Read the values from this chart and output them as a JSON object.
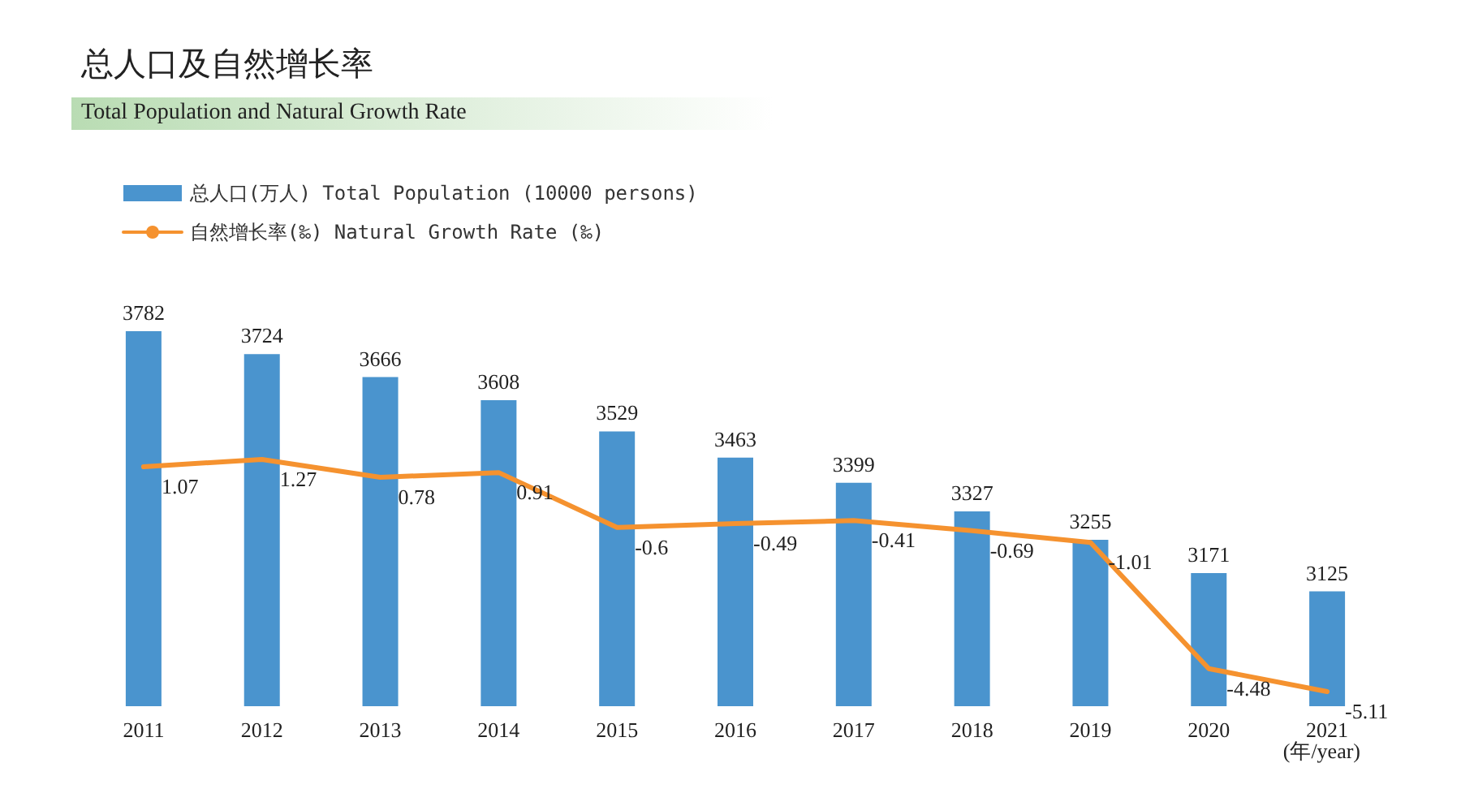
{
  "chart_data": {
    "type": "bar",
    "title": "总人口及自然增长率",
    "subtitle": "Total Population and Natural Growth Rate",
    "xlabel": "(年/year)",
    "categories": [
      "2011",
      "2012",
      "2013",
      "2014",
      "2015",
      "2016",
      "2017",
      "2018",
      "2019",
      "2020",
      "2021"
    ],
    "series": [
      {
        "name": "总人口(万人) Total Population (10000 persons)",
        "color": "#4a94ce",
        "values": [
          3782,
          3724,
          3666,
          3608,
          3529,
          3463,
          3399,
          3327,
          3255,
          3171,
          3125
        ]
      },
      {
        "name": "自然增长率(‰) Natural Growth Rate (‰)",
        "type": "line",
        "axis": "y2",
        "color": "#f5922f",
        "values": [
          1.07,
          1.27,
          0.78,
          0.91,
          -0.6,
          -0.49,
          -0.41,
          -0.69,
          -1.01,
          -4.48,
          -5.11
        ]
      }
    ],
    "ylim": [
      2835,
      3782
    ],
    "data_labels": true,
    "tick_labels": "x",
    "legend": "top left",
    "grid": false,
    "marker": "none",
    "line_style": "solid"
  }
}
